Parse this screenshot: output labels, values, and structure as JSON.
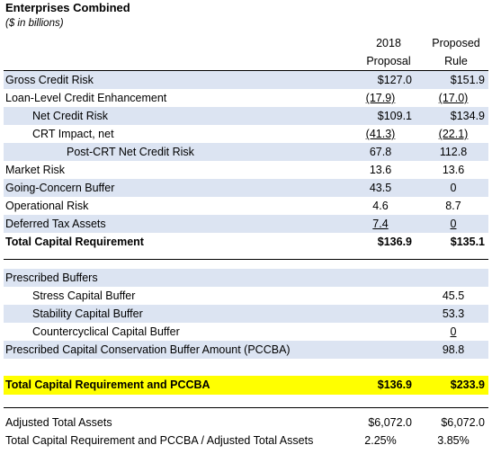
{
  "title": "Enterprises Combined",
  "subtitle": "($ in billions)",
  "columns": {
    "col1_line1": "2018",
    "col1_line2": "Proposal",
    "col2_line1": "Proposed",
    "col2_line2": "Rule"
  },
  "rows": {
    "gross_credit_risk": {
      "label": "Gross Credit Risk",
      "v1": "$127.0",
      "v2": "$151.9"
    },
    "loan_level_ce": {
      "label": "Loan-Level Credit Enhancement",
      "v1": "(17.9)",
      "v2": "(17.0)"
    },
    "net_credit_risk": {
      "label": "Net Credit Risk",
      "v1": "$109.1",
      "v2": "$134.9"
    },
    "crt_impact": {
      "label": "CRT Impact, net",
      "v1": "(41.3)",
      "v2": "(22.1)"
    },
    "post_crt": {
      "label": "Post-CRT Net Credit Risk",
      "v1": "67.8",
      "v2": "112.8"
    },
    "market_risk": {
      "label": "Market Risk",
      "v1": "13.6",
      "v2": "13.6"
    },
    "going_concern": {
      "label": "Going-Concern Buffer",
      "v1": "43.5",
      "v2": "0"
    },
    "operational": {
      "label": "Operational Risk",
      "v1": "4.6",
      "v2": "8.7"
    },
    "dta": {
      "label": "Deferred Tax Assets",
      "v1": "7.4",
      "v2": "0"
    },
    "total_capital": {
      "label": "Total Capital Requirement",
      "v1": "$136.9",
      "v2": "$135.1"
    },
    "prescribed_buffers": {
      "label": "Prescribed Buffers"
    },
    "stress_buffer": {
      "label": "Stress Capital Buffer",
      "v2": "45.5"
    },
    "stability_buffer": {
      "label": "Stability Capital Buffer",
      "v2": "53.3"
    },
    "countercyclical": {
      "label": "Countercyclical Capital Buffer",
      "v2": "0"
    },
    "pccba": {
      "label": "Prescribed Capital Conservation Buffer Amount (PCCBA)",
      "v2": "98.8"
    },
    "total_pccba": {
      "label": "Total Capital Requirement and PCCBA",
      "v1": "$136.9",
      "v2": "$233.9"
    },
    "adjusted_assets": {
      "label": "Adjusted Total Assets",
      "v1": "$6,072.0",
      "v2": "$6,072.0"
    },
    "ratio": {
      "label": "Total Capital Requirement and PCCBA / Adjusted Total Assets",
      "v1": "2.25%",
      "v2": "3.85%"
    }
  },
  "colors": {
    "shade": "#dce4f2",
    "highlight": "#ffff00"
  }
}
